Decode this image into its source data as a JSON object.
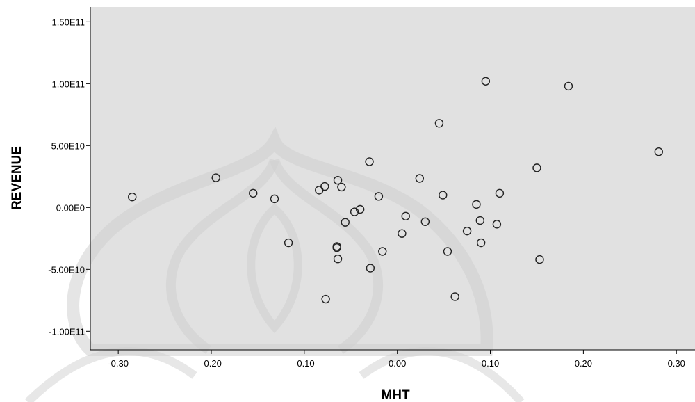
{
  "colors": {
    "plot_background": "#e1e1e1",
    "point_stroke": "#222222",
    "axis": "#000000",
    "watermark": "#d0d0d0"
  },
  "chart_data": {
    "type": "scatter",
    "title": "",
    "xlabel": "MHT",
    "ylabel": "REVENUE",
    "xlim": [
      -0.33,
      0.32
    ],
    "ylim": [
      -115000000000.0,
      162000000000.0
    ],
    "grid": false,
    "legend": "none",
    "xticks": [
      {
        "value": -0.3,
        "label": "-0.30"
      },
      {
        "value": -0.2,
        "label": "-0.20"
      },
      {
        "value": -0.1,
        "label": "-0.10"
      },
      {
        "value": 0.0,
        "label": "0.00"
      },
      {
        "value": 0.1,
        "label": "0.10"
      },
      {
        "value": 0.2,
        "label": "0.20"
      },
      {
        "value": 0.3,
        "label": "0.30"
      }
    ],
    "yticks": [
      {
        "value": 150000000000.0,
        "label": "1.50E11"
      },
      {
        "value": 100000000000.0,
        "label": "1.00E11"
      },
      {
        "value": 50000000000.0,
        "label": "5.00E10"
      },
      {
        "value": 0,
        "label": "0.00E0"
      },
      {
        "value": -50000000000.0,
        "label": "-5.00E10"
      },
      {
        "value": -100000000000.0,
        "label": "-1.00E11"
      }
    ],
    "points": [
      {
        "x": -0.285,
        "y": 8500000000.0
      },
      {
        "x": -0.195,
        "y": 24000000000.0
      },
      {
        "x": -0.155,
        "y": 11500000000.0
      },
      {
        "x": -0.132,
        "y": 7000000000.0
      },
      {
        "x": -0.117,
        "y": -28500000000.0
      },
      {
        "x": -0.084,
        "y": 14000000000.0
      },
      {
        "x": -0.078,
        "y": 17000000000.0
      },
      {
        "x": -0.077,
        "y": -74000000000.0
      },
      {
        "x": -0.064,
        "y": 22000000000.0
      },
      {
        "x": -0.06,
        "y": 16500000000.0
      },
      {
        "x": -0.065,
        "y": -31500000000.0
      },
      {
        "x": -0.065,
        "y": -32500000000.0
      },
      {
        "x": -0.064,
        "y": -41500000000.0
      },
      {
        "x": -0.056,
        "y": -12000000000.0
      },
      {
        "x": -0.046,
        "y": -3500000000.0
      },
      {
        "x": -0.04,
        "y": -1500000000.0
      },
      {
        "x": -0.03,
        "y": 37000000000.0
      },
      {
        "x": -0.029,
        "y": -49000000000.0
      },
      {
        "x": -0.02,
        "y": 9000000000.0
      },
      {
        "x": -0.016,
        "y": -35500000000.0
      },
      {
        "x": 0.005,
        "y": -21000000000.0
      },
      {
        "x": 0.009,
        "y": -7000000000.0
      },
      {
        "x": 0.024,
        "y": 23500000000.0
      },
      {
        "x": 0.03,
        "y": -11500000000.0
      },
      {
        "x": 0.045,
        "y": 68000000000.0
      },
      {
        "x": 0.049,
        "y": 10000000000.0
      },
      {
        "x": 0.054,
        "y": -35500000000.0
      },
      {
        "x": 0.062,
        "y": -72000000000.0
      },
      {
        "x": 0.075,
        "y": -19000000000.0
      },
      {
        "x": 0.085,
        "y": 2500000000.0
      },
      {
        "x": 0.089,
        "y": -10500000000.0
      },
      {
        "x": 0.09,
        "y": -28500000000.0
      },
      {
        "x": 0.095,
        "y": 102000000000.0
      },
      {
        "x": 0.107,
        "y": -13500000000.0
      },
      {
        "x": 0.11,
        "y": 11500000000.0
      },
      {
        "x": 0.15,
        "y": 32000000000.0
      },
      {
        "x": 0.153,
        "y": -42000000000.0
      },
      {
        "x": 0.184,
        "y": 98000000000.0
      },
      {
        "x": 0.281,
        "y": 45000000000.0
      }
    ]
  }
}
